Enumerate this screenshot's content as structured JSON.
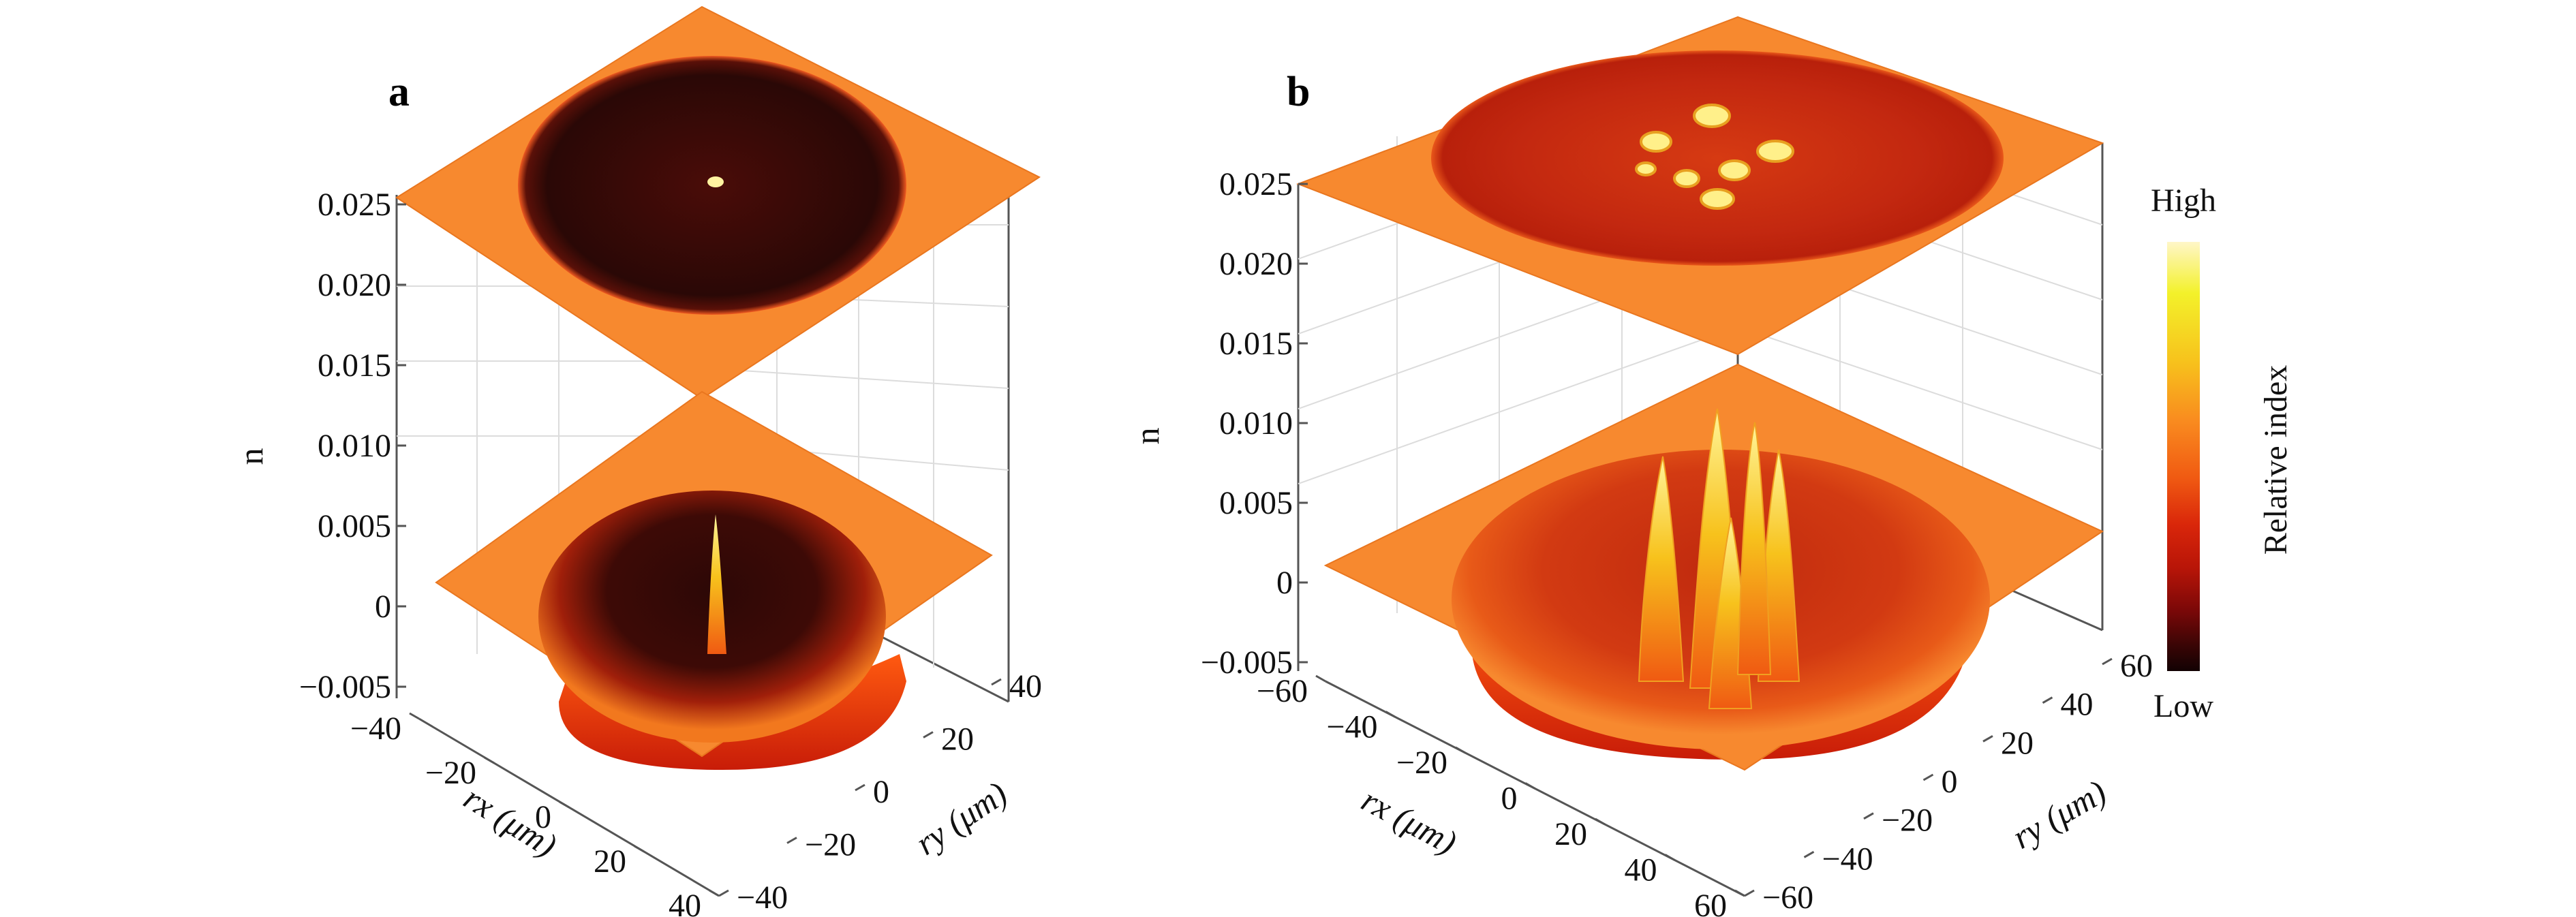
{
  "colors": {
    "plane": "#f7892f",
    "plane_edge": "#e9761f",
    "dark": "#2a0806",
    "mid": "#b3230b",
    "bright": "#ff6a10",
    "peak": "#fff07a",
    "axis": "#555555",
    "grid": "#d9d9d9"
  },
  "colormap": [
    "#fff6c8",
    "#f3f12a",
    "#f7c21c",
    "#f98a1f",
    "#f05a12",
    "#d9260a",
    "#b81508",
    "#7a0808",
    "#3a0505",
    "#120203"
  ],
  "chart_data": [
    {
      "type": "surface",
      "panel_label": "a",
      "zlabel": "n",
      "xlabel": "rx (μm)",
      "ylabel": "ry (μm)",
      "x_ticks": [
        "−40",
        "−20",
        "0",
        "20",
        "40"
      ],
      "y_ticks": [
        "40",
        "20",
        "0",
        "−20",
        "−40"
      ],
      "z_ticks": [
        "0.025",
        "0.020",
        "0.015",
        "0.010",
        "0.005",
        "0",
        "−0.005"
      ],
      "zlim": [
        -0.005,
        0.025
      ],
      "peaks": [
        {
          "x": 0,
          "y": 0,
          "height": 0.0075
        }
      ]
    },
    {
      "type": "surface",
      "panel_label": "b",
      "zlabel": "n",
      "xlabel": "rx (μm)",
      "ylabel": "ry (μm)",
      "x_ticks": [
        "−60",
        "−40",
        "−20",
        "0",
        "20",
        "40",
        "60"
      ],
      "y_ticks": [
        "60",
        "40",
        "20",
        "0",
        "−20",
        "−40",
        "−60"
      ],
      "z_ticks": [
        "0.025",
        "0.020",
        "0.015",
        "0.010",
        "0.005",
        "0",
        "−0.005"
      ],
      "zlim": [
        -0.005,
        0.025
      ],
      "peaks": [
        {
          "x": -10,
          "y": 5,
          "height": 0.0095
        },
        {
          "x": 0,
          "y": 15,
          "height": 0.0085
        },
        {
          "x": 5,
          "y": -5,
          "height": 0.006
        },
        {
          "x": 15,
          "y": 10,
          "height": 0.007
        },
        {
          "x": -15,
          "y": -10,
          "height": 0.005
        }
      ],
      "colorbar": {
        "label": "Relative index",
        "high_label": "High",
        "low_label": "Low"
      }
    }
  ]
}
